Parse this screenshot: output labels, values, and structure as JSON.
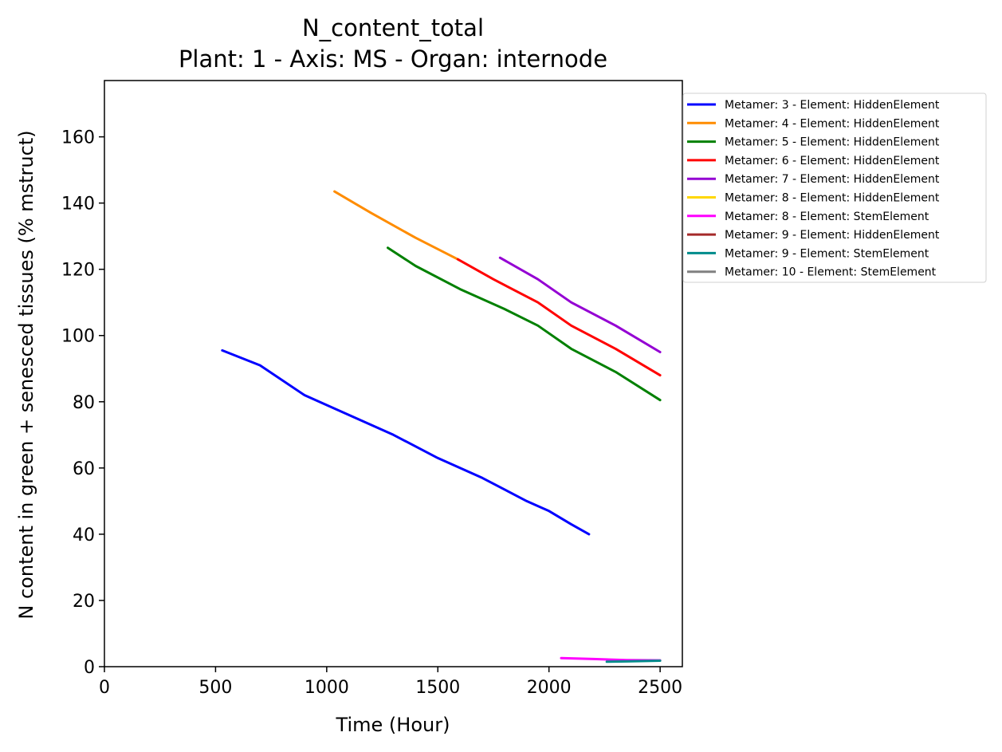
{
  "chart_data": {
    "type": "line",
    "title": "N_content_total",
    "subtitle": "Plant: 1 - Axis: MS - Organ: internode",
    "xlabel": "Time (Hour)",
    "ylabel": "N content in green + senesced tissues (% mstruct)",
    "xlim": [
      0,
      2600
    ],
    "ylim": [
      0,
      177
    ],
    "xticks": [
      0,
      500,
      1000,
      1500,
      2000,
      2500
    ],
    "yticks": [
      0,
      20,
      40,
      60,
      80,
      100,
      120,
      140,
      160
    ],
    "grid": false,
    "legend_position": "outside-right",
    "series": [
      {
        "name": "Metamer: 3 - Element: HiddenElement",
        "color": "#0000ff",
        "x": [
          530,
          700,
          900,
          1100,
          1300,
          1500,
          1700,
          1900,
          2000,
          2100,
          2180
        ],
        "y": [
          95.5,
          91,
          82,
          76,
          70,
          63,
          57,
          50,
          47,
          43,
          40
        ]
      },
      {
        "name": "Metamer: 4 - Element: HiddenElement",
        "color": "#ff8c00",
        "x": [
          1035,
          1200,
          1400,
          1590
        ],
        "y": [
          143.5,
          137,
          129.5,
          123
        ]
      },
      {
        "name": "Metamer: 5 - Element: HiddenElement",
        "color": "#008000",
        "x": [
          1275,
          1400,
          1600,
          1800,
          1950,
          2100,
          2300,
          2500
        ],
        "y": [
          126.5,
          121,
          114,
          108,
          103,
          96,
          89,
          80.5
        ]
      },
      {
        "name": "Metamer: 6 - Element: HiddenElement",
        "color": "#ff0000",
        "x": [
          1590,
          1750,
          1950,
          2100,
          2300,
          2500
        ],
        "y": [
          123,
          117,
          110,
          103,
          96,
          88
        ]
      },
      {
        "name": "Metamer: 7 - Element: HiddenElement",
        "color": "#9400d3",
        "x": [
          1780,
          1950,
          2100,
          2300,
          2500
        ],
        "y": [
          123.5,
          117,
          110,
          103,
          95
        ]
      },
      {
        "name": "Metamer: 8 - Element: HiddenElement",
        "color": "#ffd700",
        "x": [],
        "y": []
      },
      {
        "name": "Metamer: 8 - Element: StemElement",
        "color": "#ff00ff",
        "x": [
          2055,
          2200,
          2350,
          2500
        ],
        "y": [
          2.6,
          2.3,
          2.0,
          1.9
        ]
      },
      {
        "name": "Metamer: 9 - Element: HiddenElement",
        "color": "#a52a2a",
        "x": [],
        "y": []
      },
      {
        "name": "Metamer: 9 - Element: StemElement",
        "color": "#008b8b",
        "x": [
          2260,
          2350,
          2500
        ],
        "y": [
          1.5,
          1.6,
          1.8
        ]
      },
      {
        "name": "Metamer: 10 - Element: StemElement",
        "color": "#808080",
        "x": [],
        "y": []
      }
    ]
  }
}
